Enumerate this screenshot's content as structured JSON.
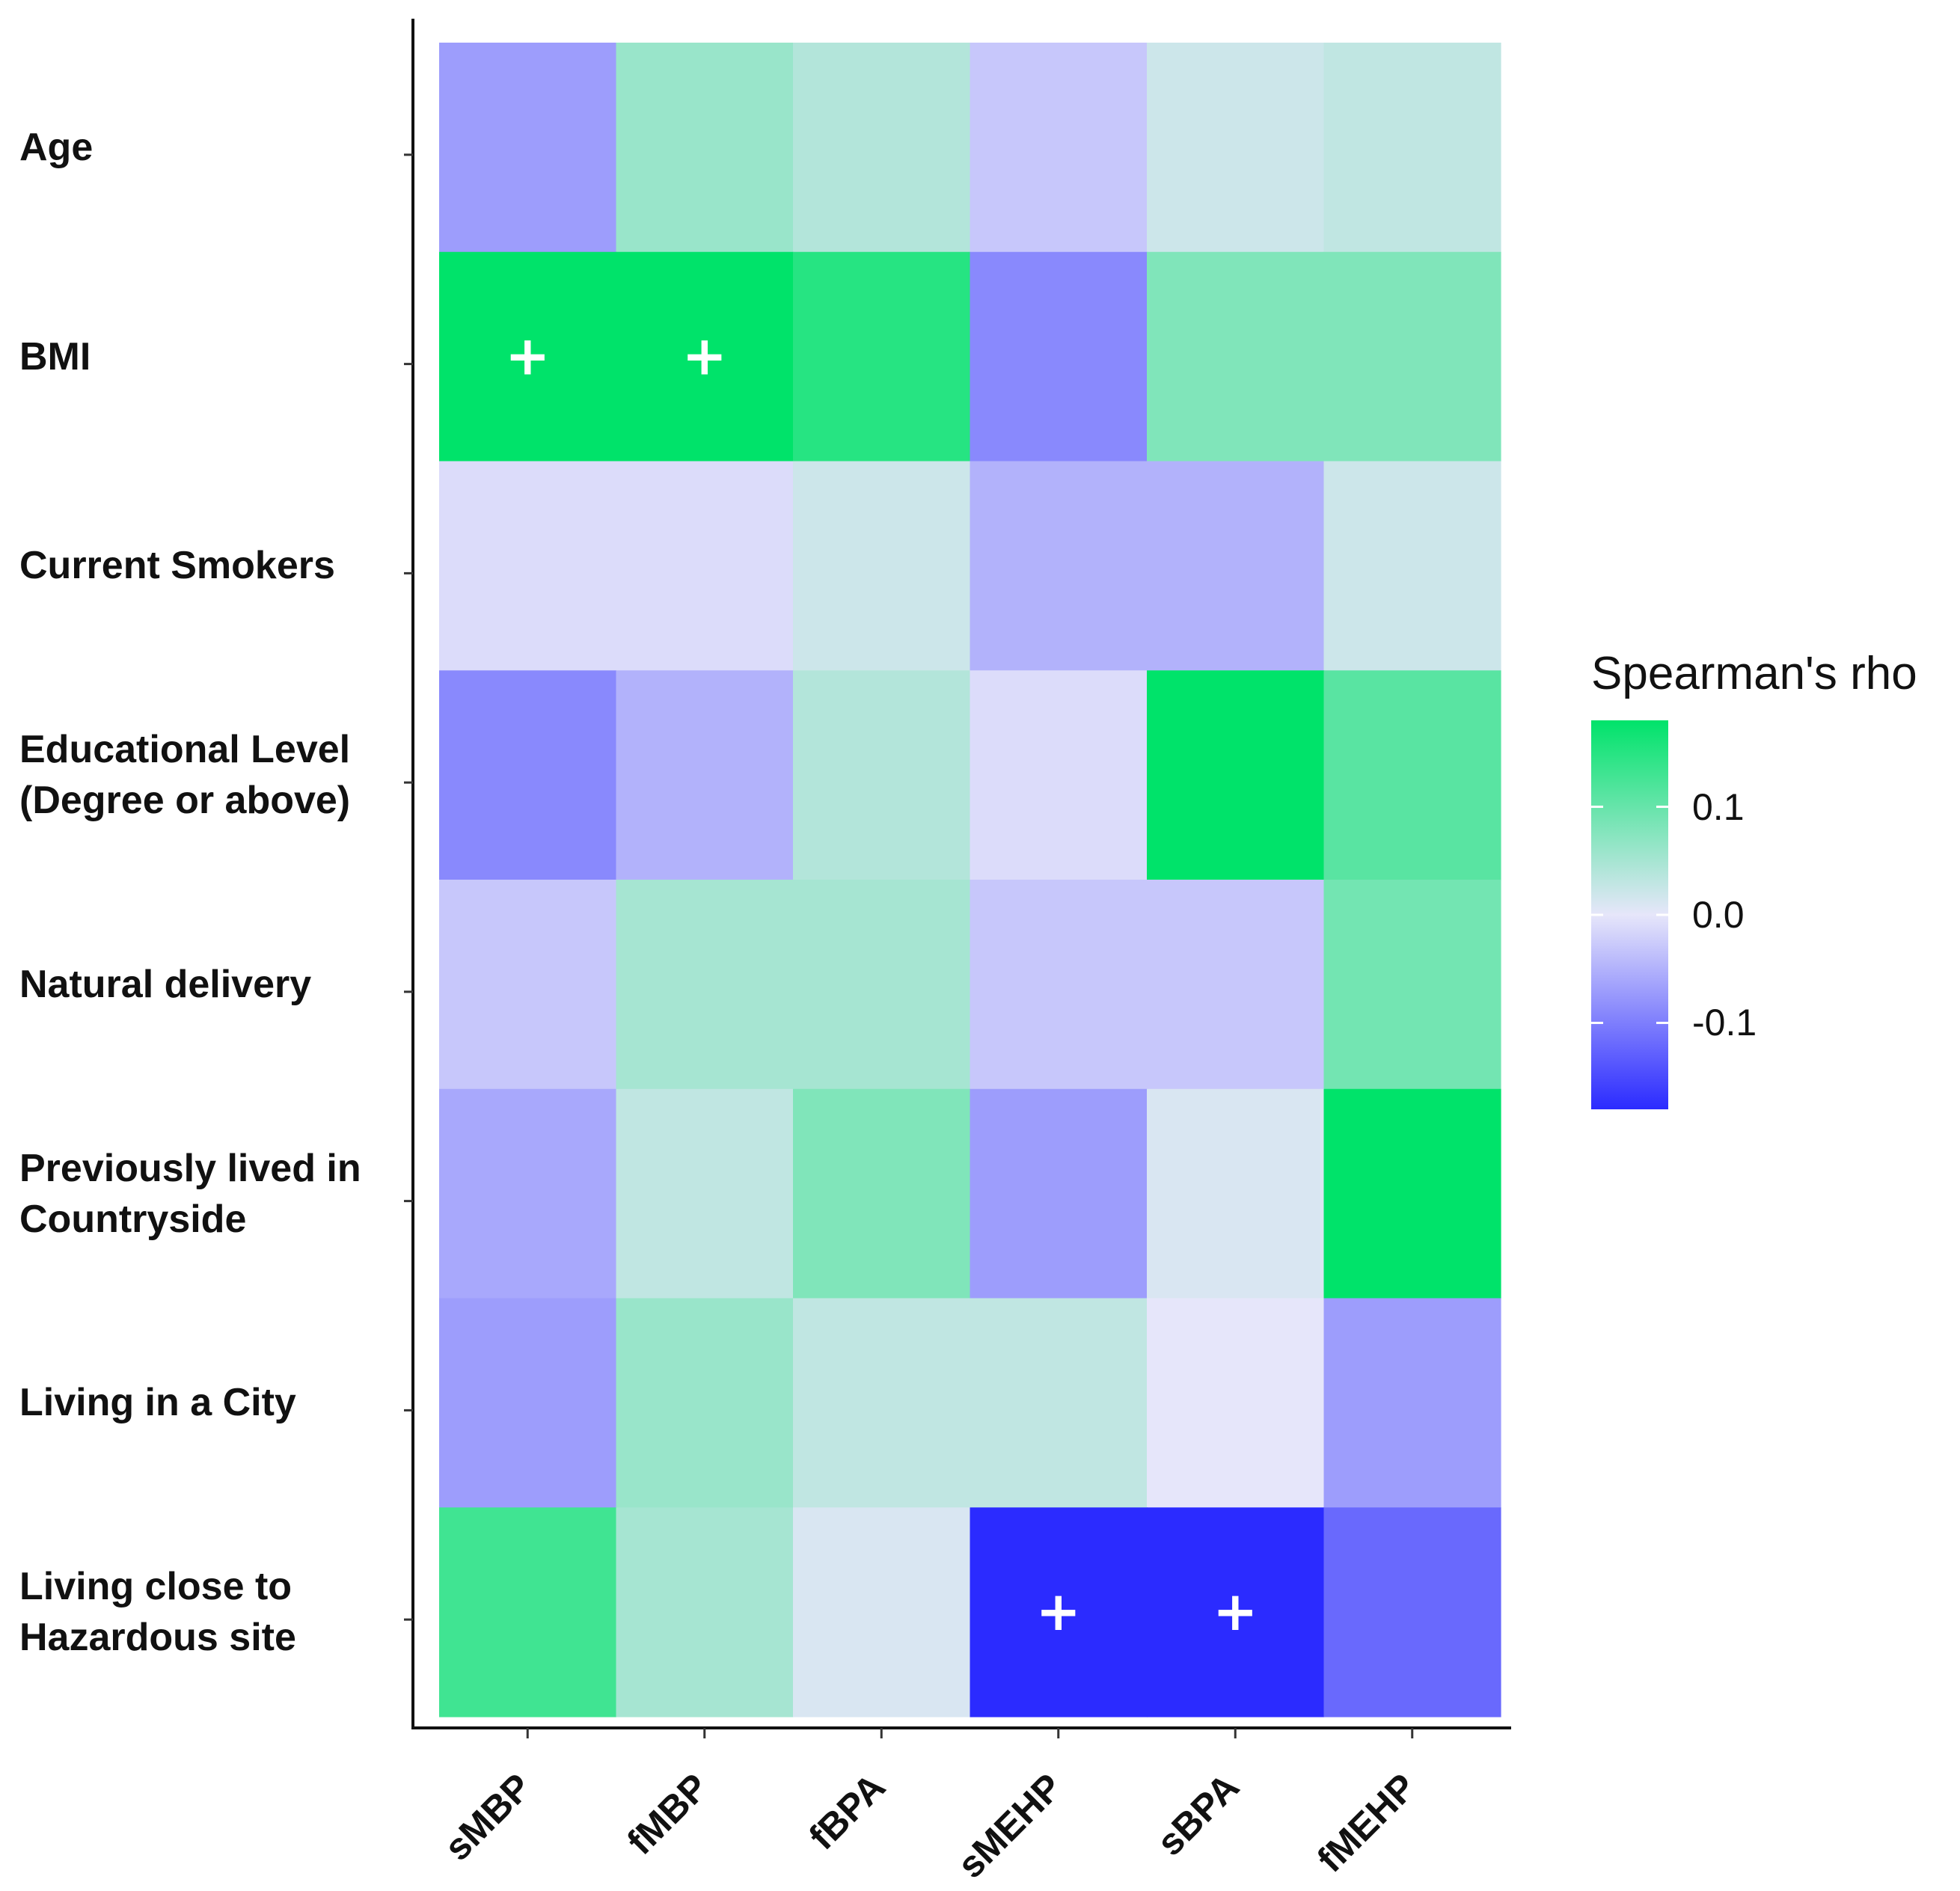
{
  "chart_data": {
    "type": "heatmap",
    "title": "",
    "xlabel": "",
    "ylabel": "",
    "x_categories": [
      "sMBP",
      "fMBP",
      "fBPA",
      "sMEHP",
      "sBPA",
      "fMEHP"
    ],
    "y_categories": [
      "Age",
      "BMI",
      "Current Smokers",
      "Educational Level\n(Degree or above)",
      "Natural delivery",
      "Previously lived in\nCountryside",
      "Living in a City",
      "Living close to\nHazardous site"
    ],
    "values": [
      [
        -0.07,
        0.06,
        0.04,
        -0.03,
        0.02,
        0.03
      ],
      [
        0.18,
        0.18,
        0.15,
        -0.09,
        0.08,
        0.08
      ],
      [
        -0.01,
        -0.01,
        0.02,
        -0.05,
        -0.05,
        0.02
      ],
      [
        -0.09,
        -0.05,
        0.04,
        -0.01,
        0.18,
        0.11
      ],
      [
        -0.03,
        0.05,
        0.05,
        -0.03,
        -0.03,
        0.09
      ],
      [
        -0.06,
        0.03,
        0.08,
        -0.07,
        0.01,
        0.18
      ],
      [
        -0.07,
        0.06,
        0.03,
        0.03,
        0.0,
        -0.07
      ],
      [
        0.13,
        0.05,
        0.01,
        -0.18,
        -0.18,
        -0.12
      ]
    ],
    "significance_marker": "+",
    "significant_cells": [
      [
        1,
        0
      ],
      [
        1,
        1
      ],
      [
        7,
        3
      ],
      [
        7,
        4
      ]
    ],
    "legend": {
      "title": "Spearman's rho",
      "ticks": [
        0.1,
        0.0,
        -0.1
      ],
      "tick_labels": [
        "0.1",
        "0.0",
        "-0.1"
      ],
      "range": [
        -0.18,
        0.18
      ],
      "placement": "right"
    },
    "colors": {
      "low": "#2b2bff",
      "mid": "#e6e6fa",
      "high": "#00e36a"
    }
  }
}
